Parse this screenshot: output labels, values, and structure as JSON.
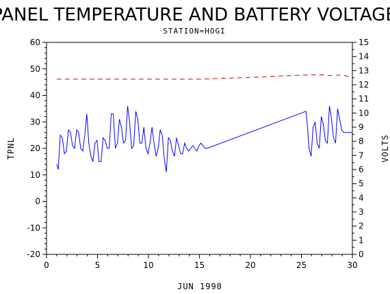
{
  "chart_data": {
    "type": "line",
    "title": "PANEL TEMPERATURE AND BATTERY VOLTAGE",
    "subtitle": "STATION=HOGI",
    "xlabel": "JUN 1990",
    "ylabel_left": "TPNL",
    "ylabel_right": "VOLTS",
    "xlim": [
      0,
      30
    ],
    "ylim_left": [
      -20,
      60
    ],
    "ylim_right": [
      0,
      15
    ],
    "x_ticks": [
      0,
      5,
      10,
      15,
      20,
      25,
      30
    ],
    "y_ticks_left": [
      -20,
      -10,
      0,
      10,
      20,
      30,
      40,
      50,
      60
    ],
    "y_ticks_right": [
      0,
      1,
      2,
      3,
      4,
      5,
      6,
      7,
      8,
      9,
      10,
      11,
      12,
      13,
      14,
      15
    ],
    "grid": false,
    "series": [
      {
        "axis": "left",
        "color": "#0000ff",
        "style": "solid",
        "x": [
          1.0,
          1.15,
          1.35,
          1.55,
          1.75,
          1.95,
          2.15,
          2.35,
          2.55,
          2.75,
          2.95,
          3.15,
          3.35,
          3.55,
          3.75,
          3.95,
          4.15,
          4.35,
          4.55,
          4.75,
          4.95,
          5.15,
          5.35,
          5.55,
          5.75,
          5.95,
          6.15,
          6.35,
          6.55,
          6.75,
          6.95,
          7.15,
          7.35,
          7.55,
          7.75,
          7.95,
          8.15,
          8.35,
          8.55,
          8.75,
          8.95,
          9.15,
          9.35,
          9.55,
          9.75,
          9.95,
          10.15,
          10.35,
          10.55,
          10.75,
          10.95,
          11.15,
          11.35,
          11.55,
          11.75,
          11.95,
          12.15,
          12.35,
          12.55,
          12.75,
          12.95,
          13.15,
          13.35,
          13.55,
          13.75,
          13.95,
          14.15,
          14.35,
          14.55,
          14.75,
          14.95,
          15.15,
          15.35,
          15.55,
          15.75,
          25.45,
          25.6,
          25.75,
          25.95,
          26.15,
          26.35,
          26.55,
          26.75,
          26.95,
          27.15,
          27.35,
          27.55,
          27.75,
          27.95,
          28.15,
          28.35,
          28.55,
          28.75,
          28.95,
          29.15,
          29.35,
          29.55,
          29.75,
          29.95,
          30.0
        ],
        "values": [
          14,
          12,
          25,
          24,
          18,
          19,
          27,
          26,
          21,
          20,
          27,
          26,
          20,
          19,
          25,
          33,
          22,
          17,
          15,
          22,
          23,
          15,
          15,
          24,
          23,
          20,
          20,
          33,
          33,
          20,
          22,
          31,
          28,
          22,
          23,
          36,
          30,
          20,
          21,
          34,
          31,
          22,
          22,
          28,
          20,
          18,
          22,
          28,
          22,
          17,
          20,
          27,
          25,
          16,
          11,
          24,
          23,
          19,
          17,
          24,
          21,
          18,
          18,
          22,
          20,
          19,
          20,
          21,
          20,
          19,
          21,
          22,
          21,
          20,
          20,
          34,
          28,
          20,
          17,
          28,
          30,
          22,
          20,
          32,
          29,
          23,
          22,
          36,
          31,
          24,
          22,
          35,
          31,
          27,
          26,
          26,
          26,
          26,
          26,
          26
        ]
      },
      {
        "axis": "right",
        "color": "#cc0000",
        "style": "dashed",
        "x": [
          1,
          3,
          6,
          9,
          12,
          15,
          17,
          19,
          21,
          22,
          24,
          26,
          27,
          28,
          29,
          29.5,
          30
        ],
        "values": [
          12.4,
          12.4,
          12.4,
          12.4,
          12.4,
          12.4,
          12.45,
          12.5,
          12.55,
          12.6,
          12.65,
          12.7,
          12.7,
          12.65,
          12.7,
          12.6,
          12.6
        ]
      }
    ]
  }
}
